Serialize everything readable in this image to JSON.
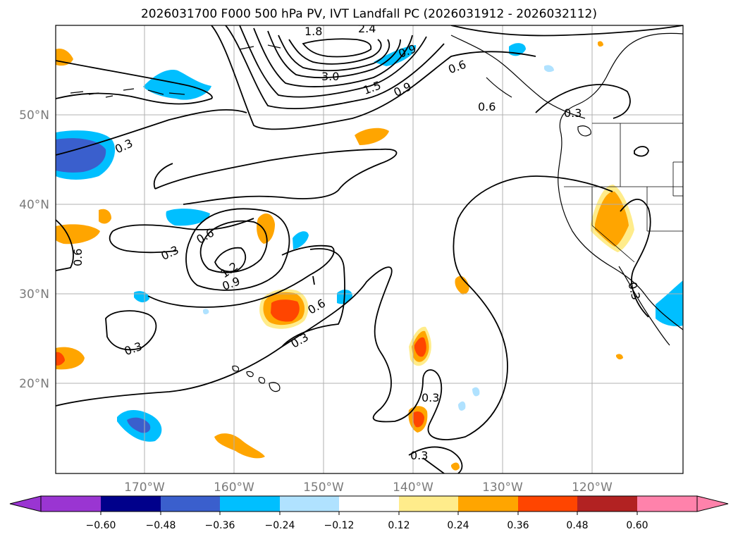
{
  "title": "2026031700 F000 500 hPa PV, IVT Landfall PC (2026031912 - 2026032112)",
  "map": {
    "lat_labels": [
      "50°N",
      "40°N",
      "30°N",
      "20°N"
    ],
    "lon_labels": [
      "170°W",
      "160°W",
      "150°W",
      "140°W",
      "130°W",
      "120°W"
    ],
    "land_color": "#ffffff",
    "ocean_color": "#ffffff",
    "gridline_color": "#b0b0b0"
  },
  "pv_contour_labels": [
    "0.3",
    "0.3",
    "0.3",
    "0.3",
    "0.3",
    "0.3",
    "0.3",
    "0.3",
    "0.6",
    "0.6",
    "0.6",
    "0.6",
    "0.6",
    "0.9",
    "0.9",
    "0.9",
    "1.2",
    "1.5",
    "1.8",
    "2.4",
    "3.0"
  ],
  "colorbar": {
    "ticks": [
      "−0.60",
      "−0.48",
      "−0.36",
      "−0.24",
      "−0.12",
      "0.12",
      "0.24",
      "0.36",
      "0.48",
      "0.60"
    ],
    "colors": [
      "#9a35d2",
      "#00008b",
      "#3a5fcd",
      "#00bfff",
      "#b0e2ff",
      "#ffffff",
      "#ffec8b",
      "#ffa500",
      "#ff4500",
      "#b22222",
      "#ff82ab"
    ]
  },
  "shading_colors": {
    "pos_1": "#ffec8b",
    "pos_2": "#ffa500",
    "pos_3": "#ff4500",
    "neg_1": "#b0e2ff",
    "neg_2": "#00bfff",
    "neg_3": "#3a5fcd"
  }
}
